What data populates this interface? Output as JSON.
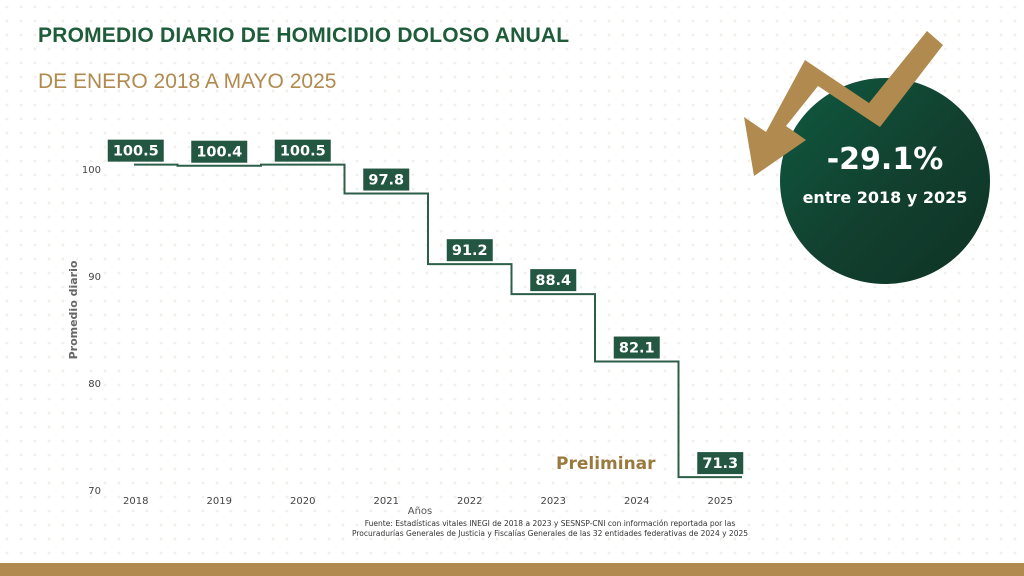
{
  "header": {
    "title": "PROMEDIO DIARIO DE HOMICIDIO DOLOSO ANUAL",
    "subtitle": "DE ENERO 2018 A MAYO 2025"
  },
  "chart_data": {
    "type": "line",
    "style": "step",
    "categories": [
      "2018",
      "2019",
      "2020",
      "2021",
      "2022",
      "2023",
      "2024",
      "2025"
    ],
    "values": [
      100.5,
      100.4,
      100.5,
      97.8,
      91.2,
      88.4,
      82.1,
      71.3
    ],
    "data_labels": [
      "100.5",
      "100.4",
      "100.5",
      "97.8",
      "91.2",
      "88.4",
      "82.1",
      "71.3"
    ],
    "ylabel": "Promedio diario",
    "xlabel": "Años",
    "yticks": [
      70,
      80,
      90,
      100
    ],
    "ylim": [
      70,
      102
    ],
    "grid": false,
    "line_color": "#2d5e48",
    "label_color": "#245742"
  },
  "annotations": {
    "preliminar": "Preliminar",
    "change_pct": "-29.1%",
    "change_desc": "entre 2018 y 2025",
    "badge_color": "#123f2f",
    "arrow_color": "#b08a4e"
  },
  "source": {
    "line1": "Fuente: Estadísticas vitales INEGI de 2018 a 2023 y SESNSP-CNI con información reportada por las",
    "line2": "Procuradurías Generales de Justicia y Fiscalías Generales de las 32 entidades federativas de 2024 y 2025"
  }
}
